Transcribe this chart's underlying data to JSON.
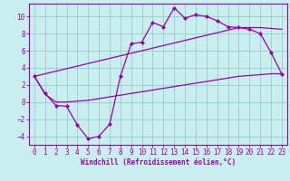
{
  "xlabel": "Windchill (Refroidissement éolien,°C)",
  "background_color": "#c8eef0",
  "grid_color": "#99cccc",
  "line_color": "#9900aa",
  "spine_color": "#9900aa",
  "x_data": [
    0,
    1,
    2,
    3,
    4,
    5,
    6,
    7,
    8,
    9,
    10,
    11,
    12,
    13,
    14,
    15,
    16,
    17,
    18,
    19,
    20,
    21,
    22,
    23
  ],
  "y_main": [
    3.0,
    1.0,
    -0.4,
    -0.5,
    -2.7,
    -4.3,
    -4.0,
    -2.6,
    3.0,
    6.8,
    7.0,
    9.3,
    8.8,
    11.0,
    9.8,
    10.2,
    10.0,
    9.5,
    8.8,
    8.7,
    8.5,
    8.0,
    5.8,
    3.3
  ],
  "y_upper": [
    3.0,
    3.3,
    3.6,
    3.9,
    4.2,
    4.5,
    4.8,
    5.1,
    5.4,
    5.7,
    6.0,
    6.3,
    6.6,
    6.9,
    7.2,
    7.5,
    7.8,
    8.1,
    8.4,
    8.7,
    8.7,
    8.7,
    8.6,
    8.5
  ],
  "y_lower": [
    3.0,
    0.9,
    0.0,
    0.0,
    0.1,
    0.2,
    0.4,
    0.6,
    0.8,
    1.0,
    1.2,
    1.4,
    1.6,
    1.8,
    2.0,
    2.2,
    2.4,
    2.6,
    2.8,
    3.0,
    3.1,
    3.2,
    3.3,
    3.3
  ],
  "xlim": [
    -0.5,
    23.5
  ],
  "ylim": [
    -5.0,
    11.5
  ],
  "yticks": [
    -4,
    -2,
    0,
    2,
    4,
    6,
    8,
    10
  ],
  "xticks": [
    0,
    1,
    2,
    3,
    4,
    5,
    6,
    7,
    8,
    9,
    10,
    11,
    12,
    13,
    14,
    15,
    16,
    17,
    18,
    19,
    20,
    21,
    22,
    23
  ],
  "tick_fontsize": 5.5,
  "xlabel_fontsize": 5.5
}
